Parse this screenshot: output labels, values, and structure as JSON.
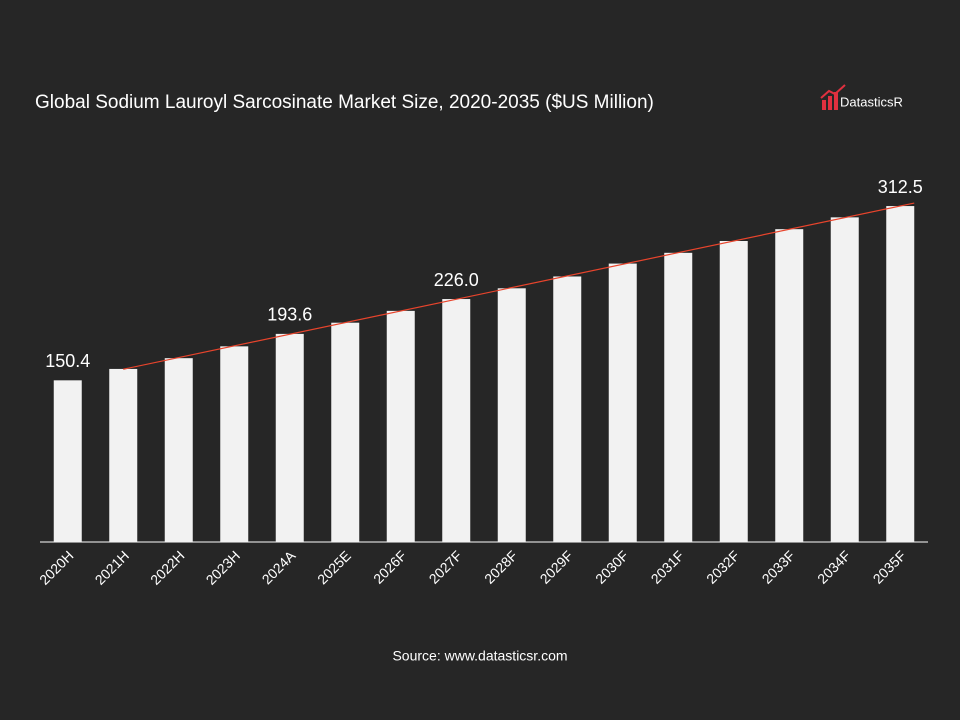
{
  "chart_data": {
    "type": "bar",
    "title": "Global Sodium Lauroyl Sarcosinate Market Size, 2020-2035 ($US Million)",
    "logo": "DatasticsR",
    "source": "Source: www.datasticsr.com",
    "categories": [
      "2020H",
      "2021H",
      "2022H",
      "2023H",
      "2024A",
      "2025E",
      "2026F",
      "2027F",
      "2028F",
      "2029F",
      "2030F",
      "2031F",
      "2032F",
      "2033F",
      "2034F",
      "2035F"
    ],
    "values": [
      150.4,
      161,
      171,
      182,
      193.6,
      204,
      215,
      226.0,
      236,
      247,
      259,
      269,
      280,
      291,
      302,
      312.5
    ],
    "value_labels": [
      "150.4",
      null,
      null,
      null,
      "193.6",
      null,
      null,
      "226.0",
      null,
      null,
      null,
      null,
      null,
      null,
      null,
      "312.5"
    ],
    "color": "#f2f2f2",
    "trend_color": "#e8442c",
    "ylim": [
      0,
      400
    ]
  }
}
